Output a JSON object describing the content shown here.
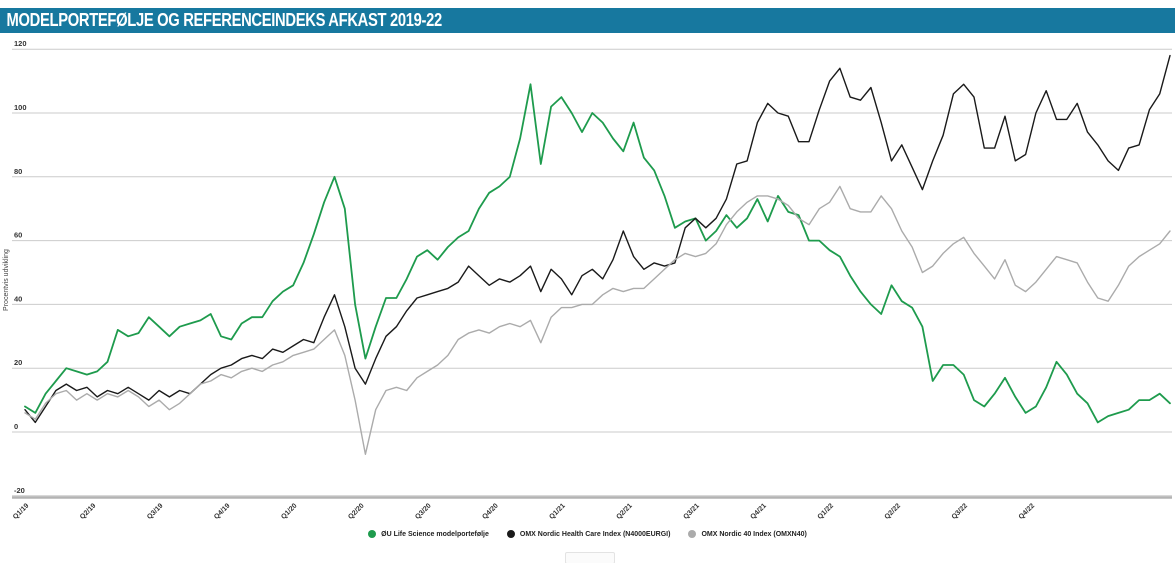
{
  "chart_data": {
    "type": "line",
    "title": "MODELPORTEFØLJE OG REFERENCEINDEKS AFKAST 2019-22",
    "ylabel": "Procentvis udvikling",
    "ylim": [
      -20,
      120
    ],
    "yticks": [
      120,
      100,
      80,
      60,
      40,
      20,
      0,
      -20
    ],
    "grid": true,
    "legend_position": "bottom",
    "n_points": 112,
    "x_unit": "biweekly from Jan 2019",
    "x_labels": [
      "Q1/19",
      "Q2/19",
      "Q3/19",
      "Q4/19",
      "Q1/20",
      "Q2/20",
      "Q3/20",
      "Q4/20",
      "Q1/21",
      "Q2/21",
      "Q3/21",
      "Q4/21",
      "Q1/22",
      "Q2/22",
      "Q3/22",
      "Q4/22"
    ],
    "x_label_step": 6.5,
    "series": [
      {
        "name": "ØU Life Science modelportefølje",
        "color": "#1E9B4D",
        "width": 1.8,
        "values": [
          8,
          6,
          12,
          16,
          20,
          19,
          18,
          19,
          22,
          32,
          30,
          31,
          36,
          33,
          30,
          33,
          34,
          35,
          37,
          30,
          29,
          34,
          36,
          36,
          41,
          44,
          46,
          53,
          62,
          72,
          80,
          70,
          40,
          23,
          33,
          42,
          42,
          48,
          55,
          57,
          54,
          58,
          61,
          63,
          70,
          75,
          77,
          80,
          92,
          109,
          84,
          102,
          105,
          100,
          94,
          100,
          97,
          92,
          88,
          97,
          86,
          82,
          74,
          64,
          66,
          67,
          60,
          63,
          68,
          64,
          67,
          73,
          66,
          74,
          69,
          68,
          60,
          60,
          57,
          55,
          49,
          44,
          40,
          37,
          46,
          41,
          39,
          33,
          16,
          21,
          21,
          18,
          10,
          8,
          12,
          17,
          11,
          6,
          8,
          14,
          22,
          18,
          12,
          9,
          3,
          5,
          6,
          7,
          10,
          10,
          12,
          9
        ]
      },
      {
        "name": "OMX Nordic Health Care Index (N4000EURGI)",
        "color": "#1A1A1A",
        "width": 1.4,
        "values": [
          7,
          3,
          8,
          13,
          15,
          13,
          14,
          11,
          13,
          12,
          14,
          12,
          10,
          13,
          11,
          13,
          12,
          15,
          18,
          20,
          21,
          23,
          24,
          23,
          26,
          25,
          27,
          29,
          28,
          36,
          43,
          33,
          20,
          15,
          23,
          30,
          33,
          38,
          42,
          43,
          44,
          45,
          47,
          52,
          49,
          46,
          48,
          47,
          49,
          52,
          44,
          51,
          48,
          43,
          49,
          51,
          48,
          54,
          63,
          55,
          51,
          53,
          52,
          53,
          64,
          67,
          64,
          67,
          73,
          84,
          85,
          97,
          103,
          100,
          99,
          91,
          91,
          101,
          110,
          114,
          105,
          104,
          108,
          97,
          85,
          90,
          83,
          76,
          85,
          93,
          106,
          109,
          105,
          89,
          89,
          99,
          85,
          87,
          100,
          107,
          98,
          98,
          103,
          94,
          90,
          85,
          82,
          89,
          90,
          101,
          106,
          118
        ]
      },
      {
        "name": "OMX Nordic 40 Index (OMXN40)",
        "color": "#ABABAB",
        "width": 1.4,
        "values": [
          6,
          4,
          9,
          12,
          13,
          10,
          12,
          10,
          12,
          11,
          13,
          11,
          8,
          10,
          7,
          9,
          12,
          15,
          16,
          18,
          17,
          19,
          20,
          19,
          21,
          22,
          24,
          25,
          26,
          29,
          32,
          24,
          10,
          -7,
          7,
          13,
          14,
          13,
          17,
          19,
          21,
          24,
          29,
          31,
          32,
          31,
          33,
          34,
          33,
          35,
          28,
          36,
          39,
          39,
          40,
          40,
          43,
          45,
          44,
          45,
          45,
          48,
          51,
          54,
          56,
          55,
          56,
          59,
          65,
          69,
          72,
          74,
          74,
          73,
          71,
          67,
          65,
          70,
          72,
          77,
          70,
          69,
          69,
          74,
          70,
          63,
          58,
          50,
          52,
          56,
          59,
          61,
          56,
          52,
          48,
          54,
          46,
          44,
          47,
          51,
          55,
          54,
          53,
          47,
          42,
          41,
          46,
          52,
          55,
          57,
          59,
          63
        ]
      }
    ]
  },
  "colors": {
    "titlebar_bg": "#17789F",
    "title_text": "#FFFFFF",
    "gridline": "#CBCBCB",
    "axis_line": "#B3B3B3",
    "tick_text": "#333333"
  }
}
